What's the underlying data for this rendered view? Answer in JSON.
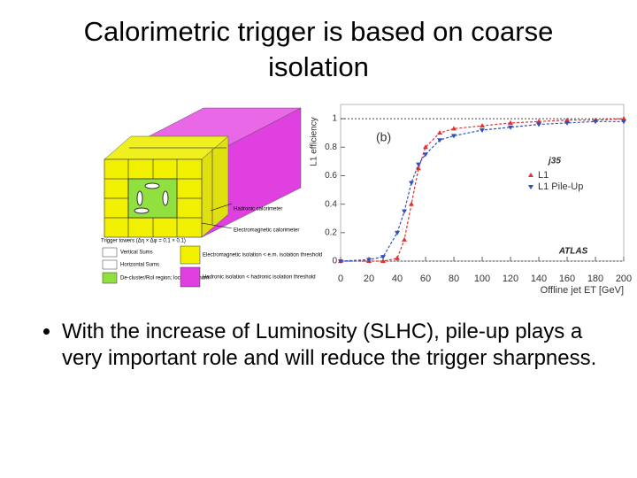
{
  "title": "Calorimetric trigger is based on coarse isolation",
  "bullets": [
    "With the increase of Luminosity (SLHC), pile-up plays a very important role and will reduce the trigger sharpness."
  ],
  "diagram": {
    "hadronic": "Hadronic calorimeter",
    "electromagnetic": "Electromagnetic calorimeter",
    "trigger_towers": "Trigger towers (Δη × Δφ = 0.1 × 0.1)",
    "vertical_sums": "Vertical Sums",
    "horizontal_sums": "Horizontal Sums",
    "declusters": "De-cluster/RoI region; local maximum",
    "em_isolation": "Electromagnetic isolation < e.m. isolation threshold",
    "had_isolation": "Hadronic isolation < hadronic isolation threshold"
  },
  "chart_data": {
    "type": "line",
    "panel_label": "(b)",
    "legend_title": "j35",
    "experiment": "ATLAS",
    "x_label": "Offline jet ET [GeV]",
    "y_label": "L1 efficiency",
    "x": [
      0,
      20,
      30,
      40,
      45,
      50,
      55,
      60,
      70,
      80,
      100,
      120,
      140,
      160,
      180,
      200
    ],
    "series": [
      {
        "name": "L1",
        "color": "#e03030",
        "marker": "up",
        "values": [
          0,
          0,
          0,
          0.02,
          0.15,
          0.4,
          0.65,
          0.8,
          0.9,
          0.93,
          0.95,
          0.97,
          0.98,
          0.99,
          0.99,
          1.0
        ]
      },
      {
        "name": "L1 Pile-Up",
        "color": "#3050c0",
        "marker": "down",
        "values": [
          0,
          0.01,
          0.03,
          0.2,
          0.35,
          0.55,
          0.68,
          0.75,
          0.85,
          0.88,
          0.92,
          0.94,
          0.96,
          0.97,
          0.98,
          0.98
        ]
      }
    ],
    "xlim": [
      0,
      200
    ],
    "ylim": [
      0,
      1.1
    ],
    "xticks": [
      0,
      20,
      40,
      60,
      80,
      100,
      120,
      140,
      160,
      180,
      200
    ],
    "yticks": [
      0,
      0.2,
      0.4,
      0.6,
      0.8,
      1
    ]
  }
}
